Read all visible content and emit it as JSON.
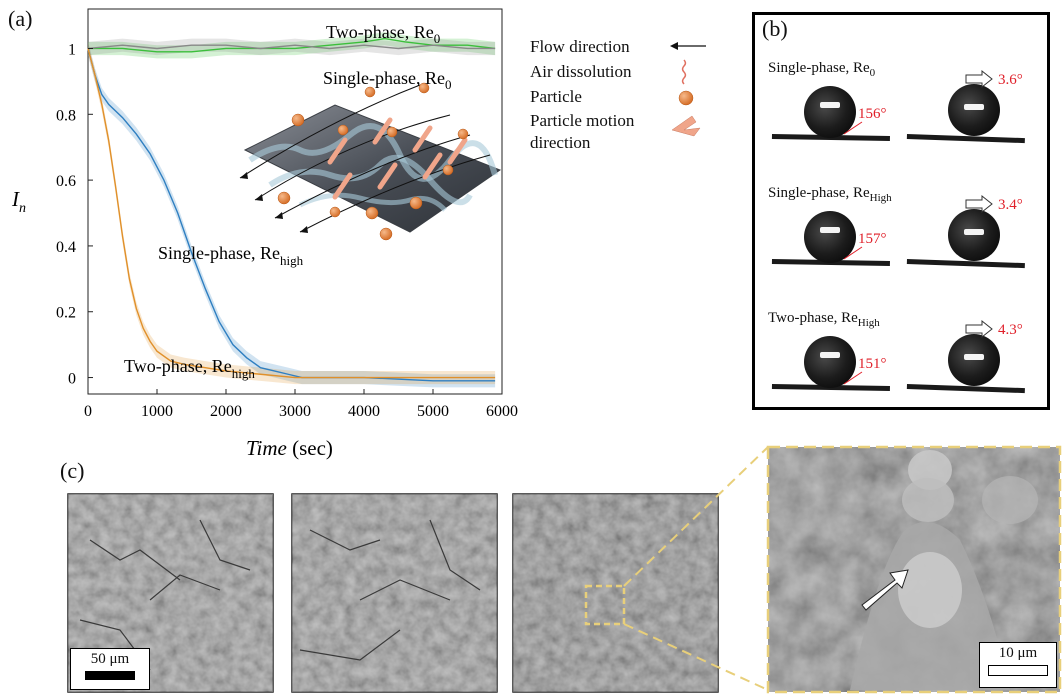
{
  "panel_labels": {
    "a": "(a)",
    "b": "(b)",
    "c": "(c)"
  },
  "chart_data": {
    "type": "line",
    "title": "",
    "xlabel": "Time",
    "xlabel_unit": "(sec)",
    "ylabel": "I",
    "ylabel_sub": "n",
    "xlim": [
      0,
      6000
    ],
    "ylim": [
      -0.05,
      1.12
    ],
    "x_ticks": [
      0,
      1000,
      2000,
      3000,
      4000,
      5000,
      6000
    ],
    "y_ticks": [
      0,
      0.2,
      0.4,
      0.6,
      0.8,
      1
    ],
    "grid": false,
    "series": [
      {
        "name": "Two-phase, Re0",
        "color": "#3bbf3b",
        "x": [
          0,
          500,
          1000,
          1500,
          2000,
          2500,
          3000,
          3500,
          4000,
          4300,
          4600,
          5000,
          5500,
          5900
        ],
        "y": [
          1.0,
          1.0,
          0.99,
          0.99,
          1.0,
          1.0,
          1.0,
          1.01,
          1.02,
          1.03,
          1.02,
          1.01,
          1.01,
          1.0
        ]
      },
      {
        "name": "Single-phase, Re0",
        "color": "#888888",
        "x": [
          0,
          500,
          1000,
          1500,
          2000,
          2500,
          3000,
          3500,
          4000,
          4500,
          5000,
          5500,
          5900
        ],
        "y": [
          1.0,
          1.01,
          1.0,
          1.01,
          1.01,
          1.0,
          1.01,
          1.0,
          1.01,
          1.0,
          1.01,
          1.0,
          1.0
        ]
      },
      {
        "name": "Single-phase, Rehigh",
        "color": "#2f7fc1",
        "x": [
          0,
          100,
          200,
          300,
          500,
          700,
          900,
          1100,
          1300,
          1500,
          1700,
          1900,
          2100,
          2300,
          2500,
          2700,
          2900,
          3100,
          3500,
          4000,
          5000,
          5900
        ],
        "y": [
          1.0,
          0.92,
          0.86,
          0.83,
          0.79,
          0.74,
          0.68,
          0.6,
          0.5,
          0.38,
          0.27,
          0.17,
          0.1,
          0.06,
          0.03,
          0.02,
          0.01,
          0.0,
          0.0,
          0.0,
          -0.01,
          -0.01
        ]
      },
      {
        "name": "Two-phase, Rehigh",
        "color": "#e0902a",
        "x": [
          0,
          100,
          200,
          300,
          400,
          500,
          600,
          700,
          800,
          900,
          1000,
          1200,
          1400,
          1700,
          2000,
          2500,
          3000,
          4000,
          5000,
          5900
        ],
        "y": [
          1.0,
          0.92,
          0.83,
          0.72,
          0.58,
          0.43,
          0.3,
          0.21,
          0.15,
          0.11,
          0.08,
          0.05,
          0.04,
          0.03,
          0.02,
          0.01,
          0.0,
          0.0,
          0.0,
          0.0
        ]
      }
    ],
    "annotations": {
      "two_phase_re0": {
        "main": "Two-phase, Re",
        "sub": "0"
      },
      "single_phase_re0": {
        "main": "Single-phase, Re",
        "sub": "0"
      },
      "single_phase_high": {
        "main": "Single-phase, Re",
        "sub": "high"
      },
      "two_phase_high": {
        "main": "Two-phase, Re",
        "sub": "high"
      }
    }
  },
  "legend": {
    "flow_direction": "Flow direction",
    "air_dissolution": "Air dissolution",
    "particle": "Particle",
    "particle_motion_1": "Particle motion",
    "particle_motion_2": "direction"
  },
  "panel_b": {
    "rows": [
      {
        "label_main": "Single-phase, Re",
        "label_sub": "0",
        "contact_angle": "156°",
        "sliding_angle": "3.6°"
      },
      {
        "label_main": "Single-phase, Re",
        "label_sub": "High",
        "contact_angle": "157°",
        "sliding_angle": "3.4°"
      },
      {
        "label_main": "Two-phase, Re",
        "label_sub": "High",
        "contact_angle": "151°",
        "sliding_angle": "4.3°"
      }
    ],
    "angle_color": "#e0202a"
  },
  "panel_c": {
    "scale_small": "50 μm",
    "scale_large": "10 μm",
    "highlight_color": "#e8cf7a"
  }
}
